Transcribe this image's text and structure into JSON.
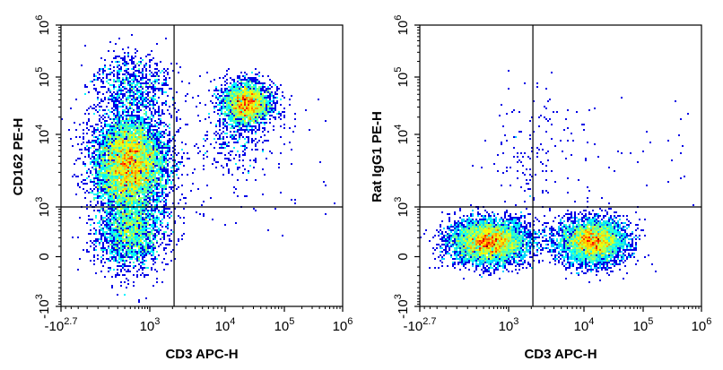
{
  "chart_data": [
    {
      "type": "scatter",
      "subtype": "density-dot-plot",
      "xlabel": "CD3 APC-H",
      "ylabel": "CD162 PE-H",
      "x_scale": "biexponential",
      "y_scale": "biexponential",
      "xlim": [
        -501,
        1000000
      ],
      "ylim": [
        -1000,
        1000000
      ],
      "x_ticks": [
        {
          "base": "-10",
          "exp": "2.7",
          "value": -501
        },
        {
          "base": "10",
          "exp": "3",
          "value": 1000
        },
        {
          "base": "10",
          "exp": "4",
          "value": 10000
        },
        {
          "base": "10",
          "exp": "5",
          "value": 100000
        },
        {
          "base": "10",
          "exp": "6",
          "value": 1000000
        }
      ],
      "y_ticks": [
        {
          "base": "-10",
          "exp": "3",
          "value": -1000
        },
        {
          "base": "0",
          "exp": "",
          "value": 0
        },
        {
          "base": "10",
          "exp": "3",
          "value": 1000
        },
        {
          "base": "10",
          "exp": "4",
          "value": 10000
        },
        {
          "base": "10",
          "exp": "5",
          "value": 100000
        },
        {
          "base": "10",
          "exp": "6",
          "value": 1000000
        }
      ],
      "quadrant_gate": {
        "x": 2100,
        "y": 1000
      },
      "populations": [
        {
          "x": 400,
          "y": 4000,
          "relative_size": "large"
        },
        {
          "x": 400,
          "y": 300,
          "relative_size": "medium"
        },
        {
          "x": 450,
          "y": 70000,
          "relative_size": "small"
        },
        {
          "x": 23000,
          "y": 34000,
          "relative_size": "medium"
        },
        {
          "x": 15000,
          "y": 8000,
          "relative_size": "sparse"
        }
      ],
      "colormap": "jet",
      "grid": false
    },
    {
      "type": "scatter",
      "subtype": "density-dot-plot",
      "xlabel": "CD3 APC-H",
      "ylabel": "Rat IgG1 PE-H",
      "x_scale": "biexponential",
      "y_scale": "biexponential",
      "xlim": [
        -501,
        1000000
      ],
      "ylim": [
        -1000,
        1000000
      ],
      "x_ticks": [
        {
          "base": "-10",
          "exp": "2.7",
          "value": -501
        },
        {
          "base": "10",
          "exp": "3",
          "value": 1000
        },
        {
          "base": "10",
          "exp": "4",
          "value": 10000
        },
        {
          "base": "10",
          "exp": "5",
          "value": 100000
        },
        {
          "base": "10",
          "exp": "6",
          "value": 1000000
        }
      ],
      "y_ticks": [
        {
          "base": "-10",
          "exp": "3",
          "value": -1000
        },
        {
          "base": "0",
          "exp": "",
          "value": 0
        },
        {
          "base": "10",
          "exp": "3",
          "value": 1000
        },
        {
          "base": "10",
          "exp": "4",
          "value": 10000
        },
        {
          "base": "10",
          "exp": "5",
          "value": 100000
        },
        {
          "base": "10",
          "exp": "6",
          "value": 1000000
        }
      ],
      "quadrant_gate": {
        "x": 2100,
        "y": 1000
      },
      "populations": [
        {
          "x": 400,
          "y": 150,
          "relative_size": "large"
        },
        {
          "x": 14000,
          "y": 150,
          "relative_size": "large"
        },
        {
          "x": 2000,
          "y": 5000,
          "relative_size": "sparse"
        }
      ],
      "colormap": "jet",
      "grid": false
    }
  ]
}
